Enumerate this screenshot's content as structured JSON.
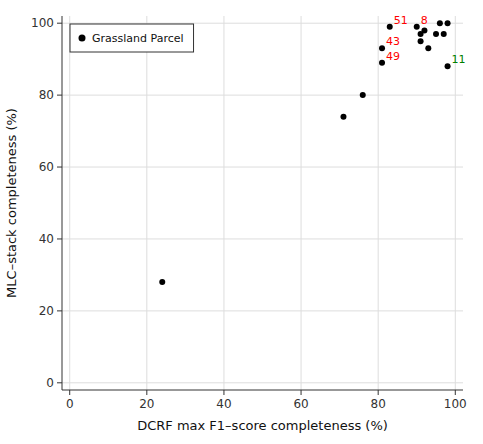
{
  "chart_data": {
    "type": "scatter",
    "xlabel": "DCRF max F1–score completeness (%)",
    "ylabel": "MLC–stack completeness (%)",
    "series": [
      {
        "name": "Grassland Parcel",
        "color": "black",
        "x": [
          24,
          71,
          76,
          83,
          81,
          81,
          90,
          91,
          92,
          91,
          93,
          95,
          96,
          97,
          98,
          98
        ],
        "values": [
          28,
          74,
          80,
          99,
          93,
          89,
          99,
          97,
          98,
          95,
          93,
          97,
          100,
          97,
          100,
          88
        ]
      }
    ],
    "annotations": [
      {
        "text": "51",
        "x": 83,
        "y": 99,
        "color": "red"
      },
      {
        "text": "43",
        "x": 81,
        "y": 93,
        "color": "red"
      },
      {
        "text": "49",
        "x": 81,
        "y": 89,
        "color": "red"
      },
      {
        "text": "8",
        "x": 90,
        "y": 99,
        "color": "red"
      },
      {
        "text": "11",
        "x": 98,
        "y": 88,
        "color": "green"
      }
    ],
    "xlim": [
      -2,
      102
    ],
    "ylim": [
      -2,
      102
    ],
    "xticks": [
      0,
      20,
      40,
      60,
      80,
      100
    ],
    "yticks": [
      0,
      20,
      40,
      60,
      80,
      100
    ],
    "grid": true,
    "legend": "upper left"
  }
}
